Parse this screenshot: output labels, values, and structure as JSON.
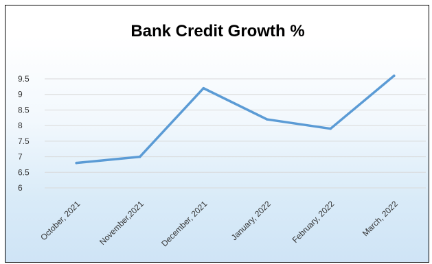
{
  "chart_data": {
    "type": "line",
    "title": "Bank Credit Growth %",
    "xlabel": "",
    "ylabel": "",
    "categories": [
      "October, 2021",
      "November,2021",
      "December, 2021",
      "January, 2022",
      "February, 2022",
      "March, 2022"
    ],
    "series": [
      {
        "values": [
          6.8,
          7.0,
          9.2,
          8.2,
          7.9,
          9.6
        ]
      }
    ],
    "yticks": [
      "6",
      "6.5",
      "7",
      "7.5",
      "8",
      "8.5",
      "9",
      "9.5"
    ],
    "ylim": [
      6,
      9.5
    ],
    "grid": true,
    "legend": "none",
    "colors": {
      "line": "#5b9bd5",
      "gridline": "#d9d9d9",
      "frame": "#000000"
    }
  }
}
